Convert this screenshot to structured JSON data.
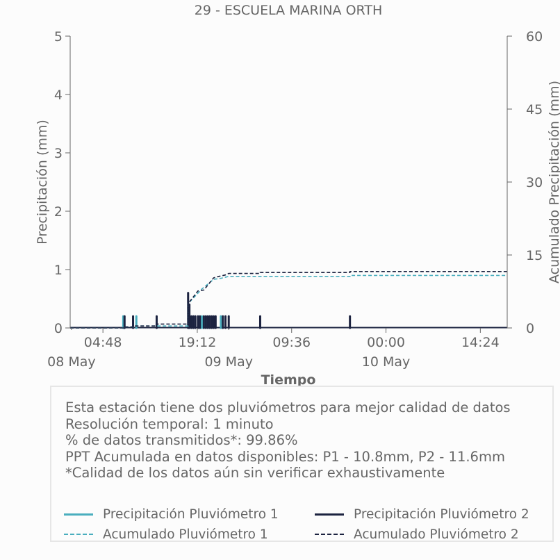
{
  "chart_data": {
    "type": "line",
    "title": "29 - ESCUELA MARINA ORTH",
    "xlabel": "Tiempo",
    "ylabel": "Precipitación (mm)",
    "y2label": "Acumulado Precipitación (mm)",
    "x_unit": "hours since 08 May 00:00",
    "xlim": [
      -0.2,
      66.5
    ],
    "ylim": [
      0,
      5
    ],
    "y2lim": [
      0,
      60
    ],
    "yticks": [
      "0",
      "1",
      "2",
      "3",
      "4",
      "5"
    ],
    "y2ticks": [
      "0",
      "15",
      "30",
      "45",
      "60"
    ],
    "xticks": [
      {
        "x": 4.8,
        "label": "04:48"
      },
      {
        "x": 19.2,
        "label": "19:12"
      },
      {
        "x": 33.6,
        "label": "09:36"
      },
      {
        "x": 48.0,
        "label": "00:00"
      },
      {
        "x": 62.4,
        "label": "14:24"
      }
    ],
    "date_labels": [
      {
        "x": 0,
        "label": "08 May"
      },
      {
        "x": 24,
        "label": "09 May"
      },
      {
        "x": 48,
        "label": "10 May"
      }
    ],
    "grid": false,
    "series": [
      {
        "name": "Precipitación Pluviómetro 1",
        "kind": "bars",
        "color": "#4aaebe",
        "points": [
          [
            7.9,
            0.2
          ],
          [
            9.9,
            0.2
          ],
          [
            19.9,
            0.2
          ],
          [
            22.8,
            0.2
          ]
        ]
      },
      {
        "name": "Precipitación Pluviómetro 2",
        "kind": "bars",
        "color": "#1c2340",
        "points": [
          [
            8.1,
            0.2
          ],
          [
            9.4,
            0.2
          ],
          [
            13.0,
            0.2
          ],
          [
            17.8,
            0.6
          ],
          [
            18.0,
            0.4
          ],
          [
            18.3,
            0.2
          ],
          [
            18.6,
            0.2
          ],
          [
            18.9,
            0.2
          ],
          [
            19.3,
            0.2
          ],
          [
            19.6,
            0.2
          ],
          [
            20.2,
            0.2
          ],
          [
            20.5,
            0.2
          ],
          [
            20.8,
            0.2
          ],
          [
            21.1,
            0.2
          ],
          [
            21.4,
            0.2
          ],
          [
            21.7,
            0.2
          ],
          [
            22.0,
            0.2
          ],
          [
            23.1,
            0.2
          ],
          [
            23.5,
            0.2
          ],
          [
            24.0,
            0.2
          ],
          [
            28.8,
            0.2
          ],
          [
            42.5,
            0.2
          ]
        ]
      },
      {
        "name": "Acumulado Pluviómetro 1",
        "kind": "line",
        "dash": "5,3",
        "color": "#4aaebe",
        "points": [
          [
            -0.2,
            0
          ],
          [
            7.9,
            0
          ],
          [
            7.9,
            0.2
          ],
          [
            9.9,
            0.2
          ],
          [
            9.9,
            0.4
          ],
          [
            17.8,
            0.4
          ],
          [
            17.8,
            5.0
          ],
          [
            19.9,
            8.0
          ],
          [
            21.7,
            10.0
          ],
          [
            22.8,
            10.2
          ],
          [
            24.0,
            10.6
          ],
          [
            42.5,
            10.6
          ],
          [
            42.5,
            10.8
          ],
          [
            66.5,
            10.8
          ]
        ]
      },
      {
        "name": "Acumulado Pluviómetro 2",
        "kind": "line",
        "dash": "5,3",
        "color": "#1c2340",
        "points": [
          [
            -0.2,
            0
          ],
          [
            8.1,
            0
          ],
          [
            8.1,
            0.2
          ],
          [
            9.4,
            0.2
          ],
          [
            9.4,
            0.4
          ],
          [
            13.0,
            0.4
          ],
          [
            13.0,
            0.8
          ],
          [
            17.8,
            0.8
          ],
          [
            17.8,
            5.0
          ],
          [
            19.3,
            7.6
          ],
          [
            20.2,
            7.8
          ],
          [
            21.7,
            10.3
          ],
          [
            22.5,
            10.6
          ],
          [
            23.5,
            10.9
          ],
          [
            24.0,
            11.2
          ],
          [
            28.8,
            11.2
          ],
          [
            28.8,
            11.4
          ],
          [
            42.5,
            11.4
          ],
          [
            42.5,
            11.6
          ],
          [
            66.5,
            11.6
          ]
        ]
      }
    ]
  },
  "info": {
    "lines": [
      "Esta estación tiene dos pluviómetros para mejor calidad de datos",
      "Resolución temporal: 1 minuto",
      "% de datos transmitidos*: 99.86%",
      "PPT Acumulada en datos disponibles: P1 - 10.8mm, P2 - 11.6mm",
      "*Calidad de los datos aún sin verificar exhaustivamente"
    ]
  },
  "legend": {
    "placement": "bottom",
    "items": [
      {
        "label": "Precipitación Pluviómetro 1",
        "color": "#4aaebe",
        "style": "solid"
      },
      {
        "label": "Precipitación Pluviómetro 2",
        "color": "#1c2340",
        "style": "solid"
      },
      {
        "label": "Acumulado Pluviómetro 1",
        "color": "#4aaebe",
        "style": "dashed"
      },
      {
        "label": "Acumulado Pluviómetro 2",
        "color": "#1c2340",
        "style": "dashed"
      }
    ]
  }
}
